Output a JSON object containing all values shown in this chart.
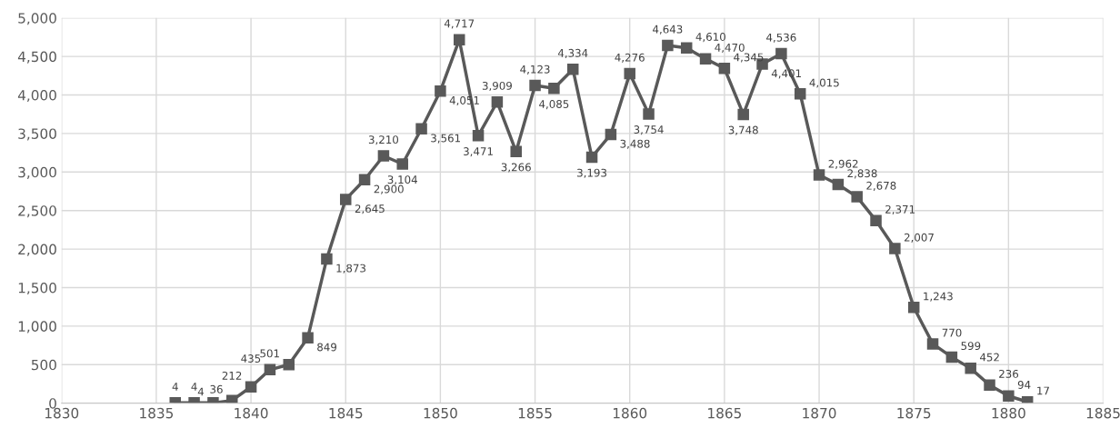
{
  "chart_data": {
    "type": "line",
    "marker": "square",
    "line_style": "solid",
    "grid": true,
    "legend": false,
    "x": [
      1836,
      1837,
      1838,
      1839,
      1840,
      1841,
      1842,
      1843,
      1844,
      1845,
      1846,
      1847,
      1848,
      1849,
      1850,
      1851,
      1852,
      1853,
      1854,
      1855,
      1856,
      1857,
      1858,
      1859,
      1860,
      1861,
      1862,
      1863,
      1864,
      1865,
      1866,
      1867,
      1868,
      1869,
      1870,
      1871,
      1872,
      1873,
      1874,
      1875,
      1876,
      1877,
      1878,
      1879,
      1880,
      1881
    ],
    "series": [
      {
        "color": "#595959",
        "values": [
          4,
          4,
          4,
          36,
          212,
          435,
          501,
          849,
          1873,
          2645,
          2900,
          3210,
          3104,
          3561,
          4051,
          4717,
          3471,
          3909,
          3266,
          4123,
          4085,
          4334,
          3193,
          3488,
          4276,
          3754,
          4643,
          4610,
          4470,
          4345,
          3748,
          4401,
          4536,
          4015,
          2962,
          2838,
          2678,
          2371,
          2007,
          1243,
          770,
          599,
          452,
          236,
          94,
          17
        ],
        "value_labels": [
          "4",
          "4",
          "4",
          "36",
          "212",
          "435",
          "501",
          "849",
          "1,873",
          "2,645",
          "2,900",
          "3,210",
          "3,104",
          "3,561",
          "4,051",
          "4,717",
          "3,471",
          "3,909",
          "3,266",
          "4,123",
          "4,085",
          "4,334",
          "3,193",
          "3,488",
          "4,276",
          "3,754",
          "4,643",
          "4,610",
          "4,470",
          "4,345",
          "3,748",
          "4,401",
          "4,536",
          "4,015",
          "2,962",
          "2,838",
          "2,678",
          "2,371",
          "2,007",
          "1,243",
          "770",
          "599",
          "452",
          "236",
          "94",
          "17"
        ]
      }
    ],
    "xlim": [
      1830,
      1885
    ],
    "xticks": [
      1830,
      1835,
      1840,
      1845,
      1850,
      1855,
      1860,
      1865,
      1870,
      1875,
      1880,
      1885
    ],
    "ylim": [
      0,
      5000
    ],
    "yticks": [
      0,
      500,
      {
        "value": 1000,
        "label": "1,000"
      },
      {
        "value": 1500,
        "label": "1,500"
      },
      {
        "value": 2000,
        "label": "2,000"
      },
      {
        "value": 2500,
        "label": "2,500"
      },
      {
        "value": 3000,
        "label": "3,000"
      },
      {
        "value": 3500,
        "label": "3,500"
      },
      {
        "value": 4000,
        "label": "4,000"
      },
      {
        "value": 4500,
        "label": "4,500"
      },
      {
        "value": 5000,
        "label": "5,000"
      }
    ]
  }
}
